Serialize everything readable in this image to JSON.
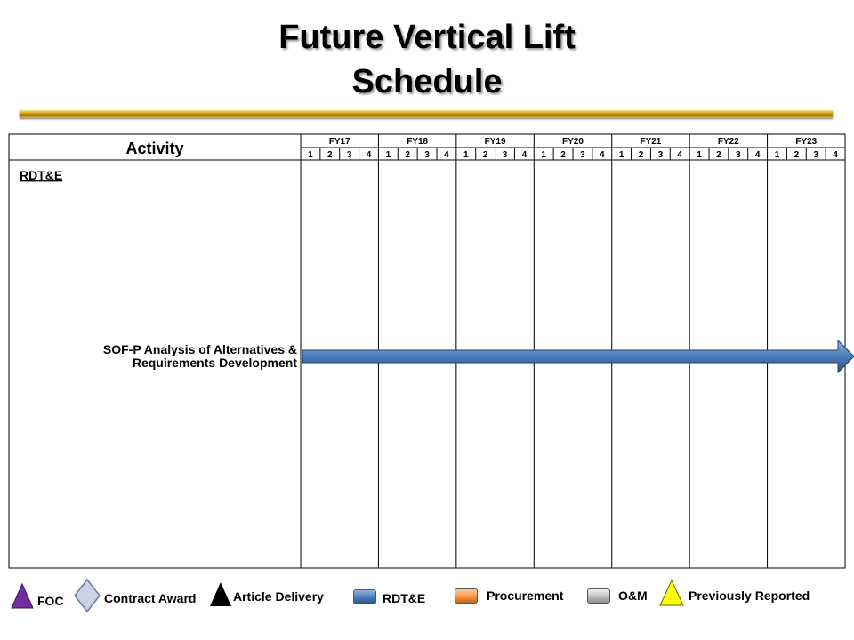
{
  "title": {
    "line1": "Future Vertical Lift",
    "line2": "Schedule"
  },
  "chart_data": {
    "type": "gantt",
    "activity_header": "Activity",
    "fiscal_years": [
      "FY17",
      "FY18",
      "FY19",
      "FY20",
      "FY21",
      "FY22",
      "FY23"
    ],
    "quarters": [
      "1",
      "2",
      "3",
      "4"
    ],
    "sections": [
      {
        "label": "RDT&E",
        "tasks": [
          {
            "label_lines": [
              "SOF-P Analysis of Alternatives &",
              "Requirements Development"
            ],
            "category": "RDT&E",
            "start": "FY17 Q1",
            "end": "FY23 Q4",
            "continues_beyond": true
          }
        ]
      }
    ],
    "colors": {
      "rdte": "#4f81bd",
      "procurement": "#f79646",
      "om": "#bfbfbf",
      "foc": "#7030a0",
      "previously_reported": "#ffff00"
    }
  },
  "legend": {
    "foc": "FOC",
    "contract_award": "Contract Award",
    "article_delivery": "Article Delivery",
    "rdte": "RDT&E",
    "procurement": "Procurement",
    "om": "O&M",
    "previously_reported": "Previously Reported"
  }
}
